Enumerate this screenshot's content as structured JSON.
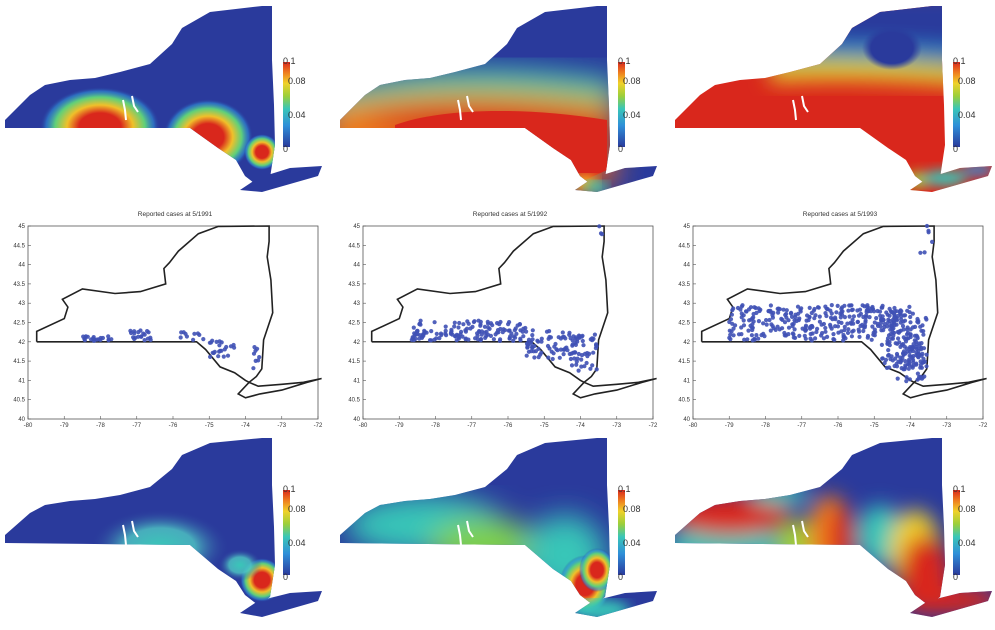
{
  "colorbar": {
    "ticks": [
      "0.1",
      "0.08",
      "0.04",
      "0"
    ]
  },
  "colors": {
    "state_outline": "#222222",
    "case_marker": "#3f51b5",
    "scale_low": "#2a3a9c",
    "scale_high": "#d9271c"
  },
  "heatmaps_top": [
    {
      "label": "heatmap-top-1"
    },
    {
      "label": "heatmap-top-2"
    },
    {
      "label": "heatmap-top-3"
    }
  ],
  "scatter_plots": [
    {
      "title": "Reported cases at 5/1991"
    },
    {
      "title": "Reported cases at 5/1992"
    },
    {
      "title": "Reported cases at 5/1993"
    }
  ],
  "scatter_axes": {
    "x_ticks": [
      "-80",
      "-79",
      "-78",
      "-77",
      "-76",
      "-75",
      "-74",
      "-73",
      "-72"
    ],
    "y_ticks": [
      "45",
      "44.5",
      "44",
      "43.5",
      "43",
      "42.5",
      "42",
      "41.5",
      "41",
      "40.5",
      "40"
    ]
  }
}
